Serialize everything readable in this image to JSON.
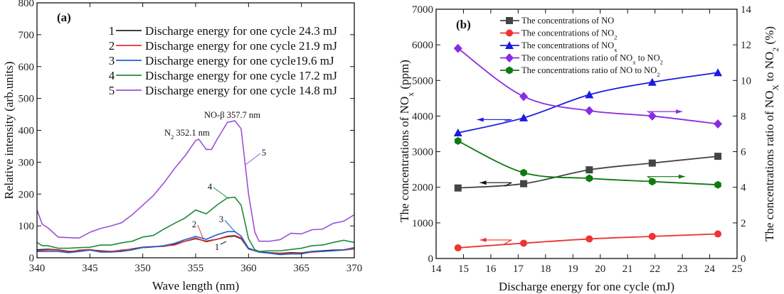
{
  "chart_data": [
    {
      "type": "line",
      "panel_label": "(a)",
      "xlabel": "Wave length (nm)",
      "ylabel": "Relative intensity (arb.units)",
      "xlim": [
        340,
        370
      ],
      "ylim": [
        0,
        800
      ],
      "xticks": [
        340,
        345,
        350,
        355,
        360,
        365,
        370
      ],
      "yticks": [
        0,
        100,
        200,
        300,
        400,
        500,
        600,
        700,
        800
      ],
      "legend_placement": "top-right",
      "annotations": [
        {
          "parts": [
            [
              "N",
              ""
            ],
            [
              "2",
              "sub"
            ],
            [
              " 352.1 nm",
              ""
            ]
          ],
          "x": 352.1
        },
        {
          "parts": [
            [
              "NO-β 357.7 nm",
              ""
            ]
          ],
          "x": 357.7
        }
      ],
      "series": [
        {
          "id": "1",
          "name": "Discharge energy for one cycle 24.3 mJ",
          "color": "#222222",
          "x": [
            340,
            341,
            342,
            343,
            344,
            345,
            346,
            347,
            348,
            349,
            350,
            351,
            352,
            353,
            354,
            355,
            356,
            357,
            358,
            358.7,
            359.3,
            360,
            361,
            362,
            363,
            364,
            365,
            366,
            367,
            368,
            369,
            370
          ],
          "y": [
            25,
            27,
            25,
            20,
            22,
            25,
            22,
            20,
            22,
            28,
            33,
            35,
            36,
            42,
            52,
            60,
            52,
            58,
            66,
            68,
            60,
            28,
            18,
            16,
            14,
            16,
            15,
            20,
            22,
            24,
            25,
            30
          ]
        },
        {
          "id": "2",
          "name": "Discharge energy for one cycle 21.9 mJ",
          "color": "#e03030",
          "x": [
            340,
            341,
            342,
            343,
            344,
            345,
            346,
            347,
            348,
            349,
            350,
            351,
            352,
            353,
            354,
            355,
            356,
            357,
            358,
            358.7,
            359.3,
            360,
            361,
            362,
            363,
            364,
            365,
            366,
            367,
            368,
            369,
            370
          ],
          "y": [
            22,
            25,
            24,
            18,
            24,
            26,
            20,
            20,
            24,
            27,
            32,
            34,
            37,
            40,
            52,
            62,
            50,
            58,
            68,
            70,
            62,
            30,
            18,
            15,
            13,
            14,
            13,
            18,
            20,
            22,
            24,
            28
          ]
        },
        {
          "id": "3",
          "name": "Discharge energy for one cycle19.6 mJ",
          "color": "#2060d0",
          "x": [
            340,
            341,
            342,
            343,
            344,
            345,
            346,
            347,
            348,
            349,
            350,
            351,
            352,
            353,
            354,
            355,
            356,
            357,
            358,
            358.7,
            359.3,
            360,
            361,
            362,
            363,
            364,
            365,
            366,
            367,
            368,
            369,
            370
          ],
          "y": [
            20,
            20,
            20,
            16,
            20,
            24,
            18,
            18,
            20,
            25,
            32,
            34,
            38,
            45,
            57,
            67,
            58,
            72,
            82,
            82,
            68,
            30,
            18,
            14,
            10,
            12,
            12,
            20,
            20,
            22,
            25,
            32
          ]
        },
        {
          "id": "4",
          "name": "Discharge energy for one cycle 17.2 mJ",
          "color": "#1f8a3a",
          "x": [
            340,
            340.5,
            341,
            342,
            343,
            344,
            345,
            346,
            347,
            348,
            349,
            350,
            351,
            352,
            353,
            354,
            355,
            356,
            357,
            358,
            358.7,
            359.3,
            360,
            360.6,
            361,
            362,
            363,
            364,
            365,
            366,
            367,
            368,
            369,
            370
          ],
          "y": [
            48,
            38,
            38,
            30,
            30,
            32,
            33,
            40,
            40,
            47,
            52,
            65,
            70,
            90,
            108,
            125,
            150,
            138,
            165,
            188,
            190,
            165,
            60,
            25,
            20,
            22,
            22,
            26,
            30,
            38,
            40,
            48,
            55,
            48
          ]
        },
        {
          "id": "5",
          "name": "Discharge energy for one cycle 14.8 mJ",
          "color": "#9a50d8",
          "x": [
            340,
            340.5,
            341,
            342,
            343,
            344,
            345,
            346,
            347,
            348,
            349,
            350,
            351,
            352,
            353,
            354,
            355,
            355.3,
            356,
            356.5,
            357,
            358,
            358.7,
            359.3,
            360,
            360.6,
            361,
            362,
            363,
            364,
            365,
            366,
            367,
            368,
            369,
            370
          ],
          "y": [
            150,
            105,
            95,
            65,
            63,
            62,
            80,
            92,
            100,
            110,
            135,
            165,
            195,
            235,
            280,
            320,
            368,
            372,
            340,
            340,
            370,
            425,
            430,
            405,
            200,
            80,
            52,
            52,
            57,
            77,
            75,
            88,
            90,
            108,
            115,
            135
          ]
        }
      ]
    },
    {
      "type": "line",
      "panel_label": "(b)",
      "xlabel": "Discharge energy for one cycle (mJ)",
      "ylabel_left": [
        [
          "The concentrations of NO",
          ""
        ],
        [
          "x",
          "sub"
        ],
        [
          " (ppm)",
          ""
        ]
      ],
      "ylabel_right": [
        [
          "The concentrations ratio of NO",
          ""
        ],
        [
          "X",
          "sub"
        ],
        [
          " to NO",
          ""
        ],
        [
          "2",
          "sub"
        ],
        [
          " (%)",
          ""
        ]
      ],
      "xlim": [
        14,
        25
      ],
      "ylim_left": [
        0,
        7000
      ],
      "ylim_right": [
        0,
        14
      ],
      "xticks": [
        14,
        15,
        16,
        17,
        18,
        19,
        20,
        21,
        22,
        23,
        24,
        25
      ],
      "yticks_left": [
        0,
        1000,
        2000,
        3000,
        4000,
        5000,
        6000,
        7000
      ],
      "yticks_right": [
        0,
        2,
        4,
        6,
        8,
        10,
        12,
        14
      ],
      "legend_placement": "top",
      "x": [
        14.8,
        17.2,
        19.6,
        21.9,
        24.3
      ],
      "series": [
        {
          "name": [
            [
              "The concentrations of NO",
              ""
            ]
          ],
          "axis": "left",
          "marker": "square",
          "color": "#444444",
          "values": [
            1980,
            2100,
            2490,
            2680,
            2870
          ]
        },
        {
          "name": [
            [
              "The concentrations of NO",
              ""
            ],
            [
              "2",
              "sub"
            ]
          ],
          "axis": "left",
          "marker": "circle",
          "color": "#ee3333",
          "values": [
            300,
            430,
            550,
            620,
            690
          ]
        },
        {
          "name": [
            [
              "The concentrations of NO",
              ""
            ],
            [
              "x",
              "sub"
            ]
          ],
          "axis": "left",
          "marker": "triangle",
          "color": "#1a1ae0",
          "values": [
            3530,
            3950,
            4600,
            4950,
            5220
          ]
        },
        {
          "name": [
            [
              "The concentrations ratio of NO",
              ""
            ],
            [
              "x",
              "sub"
            ],
            [
              " to NO",
              ""
            ],
            [
              "2",
              "sub"
            ]
          ],
          "axis": "right",
          "marker": "diamond",
          "color": "#8a2be2",
          "values": [
            11.8,
            9.1,
            8.3,
            8.0,
            7.56
          ]
        },
        {
          "name": [
            [
              "The concentrations ratio of NO to NO",
              ""
            ],
            [
              "2",
              "sub"
            ]
          ],
          "axis": "right",
          "marker": "hexagon",
          "color": "#0f7a10",
          "values": [
            6.6,
            4.82,
            4.5,
            4.32,
            4.14
          ]
        }
      ]
    }
  ]
}
